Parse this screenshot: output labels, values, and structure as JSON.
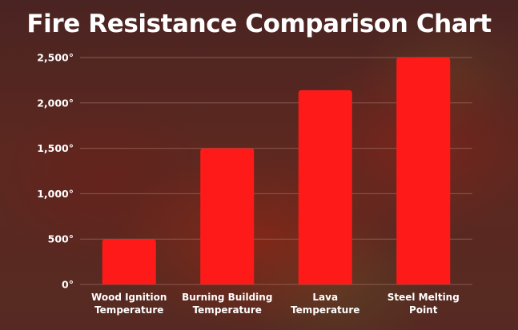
{
  "chart_data": {
    "type": "bar",
    "title": "Fire Resistance Comparison Chart",
    "categories": [
      [
        "Wood Ignition",
        "Temperature"
      ],
      [
        "Burning Building",
        "Temperature"
      ],
      [
        "Lava",
        "Temperature"
      ],
      [
        "Steel Melting",
        "Point"
      ]
    ],
    "values": [
      500,
      1500,
      2140,
      2500
    ],
    "yticks": [
      "0°",
      "500°",
      "1,000°",
      "1,500°",
      "2,000°",
      "2,500°"
    ],
    "ytick_values": [
      0,
      500,
      1000,
      1500,
      2000,
      2500
    ],
    "ylim": [
      0,
      2500
    ],
    "xlabel": "",
    "ylabel": "",
    "grid": true,
    "bar_color": "#ff1a1a",
    "grid_color": "#9a6a60",
    "text_color": "#ffffff"
  }
}
